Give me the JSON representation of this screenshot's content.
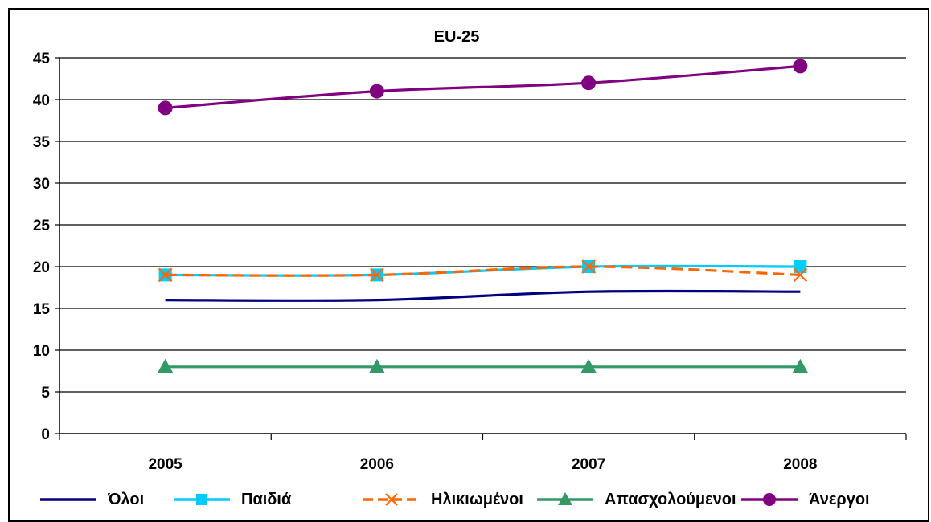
{
  "chart_data": {
    "type": "line",
    "title": "EU-25",
    "xlabel": "",
    "ylabel": "",
    "categories": [
      "2005",
      "2006",
      "2007",
      "2008"
    ],
    "ylim": [
      0,
      45
    ],
    "yticks": [
      0,
      5,
      10,
      15,
      20,
      25,
      30,
      35,
      40,
      45
    ],
    "grid": true,
    "legend_position": "bottom",
    "series": [
      {
        "name": "Όλοι",
        "values": [
          16,
          16,
          17,
          17
        ],
        "color": "#000080",
        "marker": "none",
        "dash": "solid"
      },
      {
        "name": "Παιδιά",
        "values": [
          19,
          19,
          20,
          20
        ],
        "color": "#00ccff",
        "marker": "square",
        "dash": "solid"
      },
      {
        "name": "Ηλικιωμένοι",
        "values": [
          19,
          19,
          20,
          19
        ],
        "color": "#ff6600",
        "marker": "x",
        "dash": "dashed"
      },
      {
        "name": "Απασχολούμενοι",
        "values": [
          8,
          8,
          8,
          8
        ],
        "color": "#339966",
        "marker": "triangle",
        "dash": "solid"
      },
      {
        "name": "Άνεργοι",
        "values": [
          39,
          41,
          42,
          44
        ],
        "color": "#800080",
        "marker": "circle",
        "dash": "solid"
      }
    ]
  }
}
